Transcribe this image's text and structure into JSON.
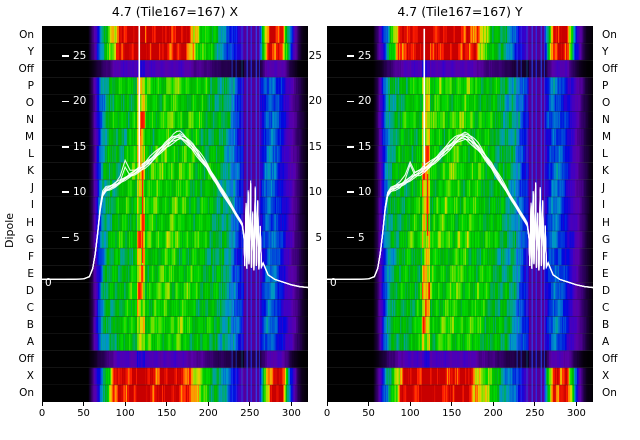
{
  "chart_data": {
    "type": "heatmap",
    "title_left": "4.7 (Tile167=167) X",
    "title_right": "4.7 (Tile167=167) Y",
    "ylabel": "Dipole",
    "x_ticks": [
      0,
      50,
      100,
      150,
      200,
      250,
      300
    ],
    "x_max": 320,
    "amp_ticks": [
      25,
      20,
      15,
      10,
      5
    ],
    "zero_label": "0",
    "row_labels": [
      "On",
      "Y",
      "Off",
      "P",
      "O",
      "N",
      "M",
      "L",
      "K",
      "J",
      "I",
      "H",
      "G",
      "F",
      "E",
      "D",
      "C",
      "B",
      "A",
      "Off",
      "X",
      "On"
    ],
    "rows": [
      {
        "label": "On",
        "type": "power",
        "gain": 1.0
      },
      {
        "label": "Y",
        "type": "power",
        "gain": 0.97
      },
      {
        "label": "Off",
        "type": "off",
        "gain": 0.16
      },
      {
        "label": "P",
        "type": "dipole",
        "gain": 1.02
      },
      {
        "label": "O",
        "type": "dipole",
        "gain": 0.97
      },
      {
        "label": "N",
        "type": "dipole",
        "gain": 1.04
      },
      {
        "label": "M",
        "type": "dipole",
        "gain": 0.96
      },
      {
        "label": "L",
        "type": "dipole",
        "gain": 1.0
      },
      {
        "label": "K",
        "type": "dipole",
        "gain": 1.03
      },
      {
        "label": "J",
        "type": "dipole",
        "gain": 0.98
      },
      {
        "label": "I",
        "type": "dipole",
        "gain": 1.01
      },
      {
        "label": "H",
        "type": "dipole",
        "gain": 0.99
      },
      {
        "label": "G",
        "type": "dipole",
        "gain": 1.05
      },
      {
        "label": "F",
        "type": "dipole",
        "gain": 0.95
      },
      {
        "label": "E",
        "type": "dipole",
        "gain": 1.0
      },
      {
        "label": "D",
        "type": "dipole",
        "gain": 1.02
      },
      {
        "label": "C",
        "type": "dipole",
        "gain": 0.98
      },
      {
        "label": "B",
        "type": "dipole",
        "gain": 1.03
      },
      {
        "label": "A",
        "type": "dipole",
        "gain": 0.97
      },
      {
        "label": "Off",
        "type": "off",
        "gain": 0.16
      },
      {
        "label": "X",
        "type": "power",
        "gain": 0.98
      },
      {
        "label": "On",
        "type": "power",
        "gain": 1.0
      }
    ],
    "profiles": {
      "power": [
        [
          0,
          0
        ],
        [
          55,
          0
        ],
        [
          62,
          0.12
        ],
        [
          68,
          0.28
        ],
        [
          74,
          0.45
        ],
        [
          80,
          0.62
        ],
        [
          85,
          0.78
        ],
        [
          90,
          0.92
        ],
        [
          96,
          1
        ],
        [
          168,
          1
        ],
        [
          176,
          0.86
        ],
        [
          184,
          0.73
        ],
        [
          193,
          0.62
        ],
        [
          202,
          0.52
        ],
        [
          212,
          0.43
        ],
        [
          222,
          0.34
        ],
        [
          230,
          0.26
        ],
        [
          238,
          0.19
        ],
        [
          244,
          0.13
        ],
        [
          255,
          0.1
        ],
        [
          262,
          0.28
        ],
        [
          267,
          0.6
        ],
        [
          272,
          0.88
        ],
        [
          278,
          0.96
        ],
        [
          288,
          0.95
        ],
        [
          293,
          0.62
        ],
        [
          298,
          0.32
        ],
        [
          303,
          0.16
        ],
        [
          308,
          0.06
        ],
        [
          312,
          0.02
        ],
        [
          320,
          0
        ]
      ],
      "dipole": [
        [
          0,
          0
        ],
        [
          55,
          0
        ],
        [
          60,
          0.06
        ],
        [
          64,
          0.16
        ],
        [
          68,
          0.28
        ],
        [
          73,
          0.4
        ],
        [
          80,
          0.47
        ],
        [
          90,
          0.5
        ],
        [
          100,
          0.52
        ],
        [
          112,
          0.54
        ],
        [
          124,
          0.55
        ],
        [
          136,
          0.56
        ],
        [
          148,
          0.58
        ],
        [
          160,
          0.58
        ],
        [
          172,
          0.56
        ],
        [
          184,
          0.54
        ],
        [
          196,
          0.51
        ],
        [
          208,
          0.48
        ],
        [
          218,
          0.44
        ],
        [
          226,
          0.4
        ],
        [
          232,
          0.33
        ],
        [
          237,
          0.27
        ],
        [
          242,
          0.2
        ],
        [
          247,
          0.15
        ],
        [
          255,
          0.13
        ],
        [
          261,
          0.18
        ],
        [
          266,
          0.27
        ],
        [
          272,
          0.34
        ],
        [
          279,
          0.32
        ],
        [
          286,
          0.26
        ],
        [
          293,
          0.2
        ],
        [
          299,
          0.15
        ],
        [
          305,
          0.1
        ],
        [
          311,
          0.05
        ],
        [
          316,
          0.02
        ],
        [
          320,
          0
        ]
      ]
    },
    "colormap": [
      [
        0,
        "#000000"
      ],
      [
        0.07,
        "#2d0060"
      ],
      [
        0.13,
        "#5a00a8"
      ],
      [
        0.19,
        "#3c00c8"
      ],
      [
        0.25,
        "#0008e0"
      ],
      [
        0.31,
        "#0052d8"
      ],
      [
        0.37,
        "#0096c8"
      ],
      [
        0.43,
        "#00a87a"
      ],
      [
        0.5,
        "#00b400"
      ],
      [
        0.58,
        "#00d800"
      ],
      [
        0.66,
        "#7ce000"
      ],
      [
        0.73,
        "#e0d800"
      ],
      [
        0.8,
        "#ff9000"
      ],
      [
        0.88,
        "#ff1e00"
      ],
      [
        1,
        "#c80000"
      ]
    ],
    "rfi_band": {
      "from": 243,
      "to": 262,
      "scale": 0.5,
      "floor": 0.12
    },
    "bright_band": {
      "from": 114,
      "to": 123,
      "scale": 1.35
    },
    "rfi_lines": [
      {
        "ch": 228,
        "color": "#2850ff",
        "alpha": 0.55,
        "w": 1.2
      },
      {
        "ch": 233,
        "color": "#1e46ff",
        "alpha": 0.6,
        "w": 1
      },
      {
        "ch": 240,
        "color": "#00b4ff",
        "alpha": 0.35,
        "w": 1
      },
      {
        "ch": 246,
        "color": "#2850ff",
        "alpha": 0.7,
        "w": 1.4
      },
      {
        "ch": 251,
        "color": "#1e3cff",
        "alpha": 0.8,
        "w": 1.2
      },
      {
        "ch": 257,
        "color": "#2850ff",
        "alpha": 0.7,
        "w": 1.4
      },
      {
        "ch": 261,
        "color": "#1e46ff",
        "alpha": 0.6,
        "w": 1
      }
    ],
    "bandpass_curve": [
      [
        0,
        0.4
      ],
      [
        28,
        0.4
      ],
      [
        50,
        0.45
      ],
      [
        57,
        0.7
      ],
      [
        61,
        1.6
      ],
      [
        64,
        3.2
      ],
      [
        67,
        5.5
      ],
      [
        70,
        8.2
      ],
      [
        73,
        9.8
      ],
      [
        77,
        10.3
      ],
      [
        82,
        10.5
      ],
      [
        88,
        10.8
      ],
      [
        94,
        11.1
      ],
      [
        100,
        11.5
      ],
      [
        106,
        11.9
      ],
      [
        112,
        12.2
      ],
      [
        118,
        12.6
      ],
      [
        124,
        13.0
      ],
      [
        130,
        13.5
      ],
      [
        136,
        14.0
      ],
      [
        142,
        14.6
      ],
      [
        148,
        15.1
      ],
      [
        154,
        15.6
      ],
      [
        158,
        15.9
      ],
      [
        162,
        16.1
      ],
      [
        166,
        16.2
      ],
      [
        170,
        16.0
      ],
      [
        174,
        15.7
      ],
      [
        178,
        15.3
      ],
      [
        182,
        14.9
      ],
      [
        186,
        14.4
      ],
      [
        190,
        13.9
      ],
      [
        194,
        13.4
      ],
      [
        198,
        12.9
      ],
      [
        202,
        12.3
      ],
      [
        206,
        11.7
      ],
      [
        210,
        11.1
      ],
      [
        214,
        10.5
      ],
      [
        218,
        9.9
      ],
      [
        222,
        9.3
      ],
      [
        226,
        8.7
      ],
      [
        230,
        8.1
      ],
      [
        234,
        7.5
      ],
      [
        238,
        6.9
      ],
      [
        241,
        6.4
      ],
      [
        243,
        5.0
      ],
      [
        244,
        1.9
      ],
      [
        245.5,
        8.6
      ],
      [
        246.5,
        1.6
      ],
      [
        248,
        9.9
      ],
      [
        249,
        2.1
      ],
      [
        251,
        10.9
      ],
      [
        252,
        1.7
      ],
      [
        253.5,
        7.6
      ],
      [
        255,
        1.4
      ],
      [
        256.5,
        10.3
      ],
      [
        258,
        1.9
      ],
      [
        259.5,
        8.9
      ],
      [
        261,
        1.5
      ],
      [
        262.5,
        6.2
      ],
      [
        264,
        1.8
      ],
      [
        266,
        2.2
      ],
      [
        272,
        0.9
      ],
      [
        280,
        0.4
      ],
      [
        290,
        0.1
      ],
      [
        300,
        -0.2
      ],
      [
        310,
        -0.4
      ],
      [
        320,
        -0.5
      ]
    ],
    "bundle": {
      "scales": [
        1,
        0.99,
        1.005,
        0.985,
        1.015,
        0.98,
        1.025
      ],
      "knee": {
        "ch": 99,
        "h": 1.7,
        "sigma": 3,
        "lines": [
          5,
          6
        ]
      }
    },
    "plots": [
      {
        "name": "X",
        "phase": 0,
        "spikes": [
          {
            "ch": 117,
            "from": 12.6,
            "to": 29,
            "color": "#ffffff",
            "w": 1.6
          },
          {
            "ch": 119,
            "from": 12.8,
            "to": 16.2,
            "color": "#ff9600",
            "w": 1.1
          },
          {
            "ch": 121,
            "from": 2.2,
            "to": 12.4,
            "color": "#ff1e00",
            "w": 1.3
          }
        ]
      },
      {
        "name": "Y",
        "phase": 2.6,
        "spikes": [
          {
            "ch": 117,
            "from": 12.6,
            "to": 28,
            "color": "#ffffff",
            "w": 1.6
          },
          {
            "ch": 121,
            "from": 5.2,
            "to": 12.0,
            "color": "#ff1e00",
            "w": 1.3
          }
        ]
      }
    ]
  }
}
